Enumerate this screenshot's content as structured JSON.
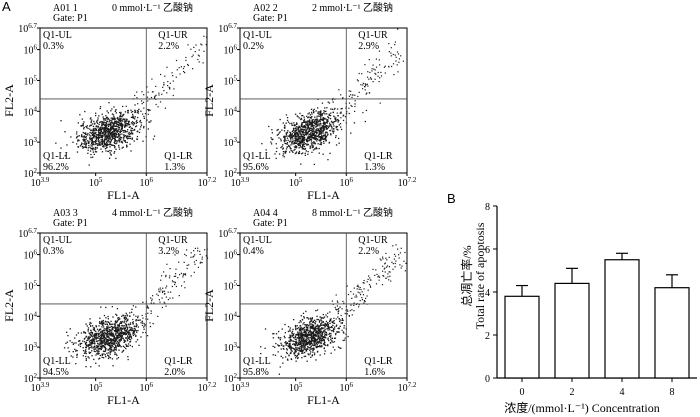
{
  "figure": {
    "panel_a_label": "A",
    "panel_b_label": "B"
  },
  "chart_data": [
    {
      "type": "scatter",
      "panel": "A",
      "sample_id": "A01 1",
      "gate": "Gate: P1",
      "condition": "0 mmol·L⁻¹ 乙酸钠",
      "xlabel": "FL1-A",
      "ylabel": "FL2-A",
      "x_ticks": [
        "10^3.9",
        "10^5",
        "10^6",
        "10^7.2"
      ],
      "y_ticks": [
        "10^6.7",
        "10^6",
        "10^5",
        "10^4",
        "10^3",
        "10^2"
      ],
      "quadrants": {
        "UL": {
          "name": "Q1-UL",
          "value": "0.3%"
        },
        "UR": {
          "name": "Q1-UR",
          "value": "2.2%"
        },
        "LL": {
          "name": "Q1-LL",
          "value": "96.2%"
        },
        "LR": {
          "name": "Q1-LR",
          "value": "1.3%"
        }
      },
      "gate_lines": {
        "x_log": 6.0,
        "y_log": 4.4
      }
    },
    {
      "type": "scatter",
      "panel": "A",
      "sample_id": "A02 2",
      "gate": "Gate: P1",
      "condition": "2 mmol·L⁻¹ 乙酸钠",
      "xlabel": "FL1-A",
      "ylabel": "FL2-A",
      "x_ticks": [
        "10^3.9",
        "10^5",
        "10^6",
        "10^7.2"
      ],
      "y_ticks": [
        "10^6.7",
        "10^6",
        "10^5",
        "10^4",
        "10^3",
        "10^2"
      ],
      "quadrants": {
        "UL": {
          "name": "Q1-UL",
          "value": "0.2%"
        },
        "UR": {
          "name": "Q1-UR",
          "value": "2.9%"
        },
        "LL": {
          "name": "Q1-LL",
          "value": "95.6%"
        },
        "LR": {
          "name": "Q1-LR",
          "value": "1.3%"
        }
      },
      "gate_lines": {
        "x_log": 6.0,
        "y_log": 4.4
      }
    },
    {
      "type": "scatter",
      "panel": "A",
      "sample_id": "A03 3",
      "gate": "Gate: P1",
      "condition": "4 mmol·L⁻¹ 乙酸钠",
      "xlabel": "FL1-A",
      "ylabel": "FL2-A",
      "x_ticks": [
        "10^3.9",
        "10^5",
        "10^6",
        "10^7.2"
      ],
      "y_ticks": [
        "10^6.7",
        "10^6",
        "10^5",
        "10^4",
        "10^3",
        "10^2"
      ],
      "quadrants": {
        "UL": {
          "name": "Q1-UL",
          "value": "0.3%"
        },
        "UR": {
          "name": "Q1-UR",
          "value": "3.2%"
        },
        "LL": {
          "name": "Q1-LL",
          "value": "94.5%"
        },
        "LR": {
          "name": "Q1-LR",
          "value": "2.0%"
        }
      },
      "gate_lines": {
        "x_log": 6.0,
        "y_log": 4.4
      }
    },
    {
      "type": "scatter",
      "panel": "A",
      "sample_id": "A04 4",
      "gate": "Gate: P1",
      "condition": "8 mmol·L⁻¹ 乙酸钠",
      "xlabel": "FL1-A",
      "ylabel": "FL2-A",
      "x_ticks": [
        "10^3.9",
        "10^5",
        "10^6",
        "10^7.2"
      ],
      "y_ticks": [
        "10^6.7",
        "10^6",
        "10^5",
        "10^4",
        "10^3",
        "10^2"
      ],
      "quadrants": {
        "UL": {
          "name": "Q1-UL",
          "value": "0.4%"
        },
        "UR": {
          "name": "Q1-UR",
          "value": "2.2%"
        },
        "LL": {
          "name": "Q1-LL",
          "value": "95.8%"
        },
        "LR": {
          "name": "Q1-LR",
          "value": "1.6%"
        }
      },
      "gate_lines": {
        "x_log": 6.0,
        "y_log": 4.4
      }
    },
    {
      "type": "bar",
      "panel": "B",
      "categories": [
        "0",
        "2",
        "4",
        "8"
      ],
      "values": [
        3.8,
        4.4,
        5.5,
        4.2
      ],
      "errors": [
        0.5,
        0.7,
        0.3,
        0.6
      ],
      "ylim": [
        0,
        8
      ],
      "y_ticks": [
        "0",
        "2",
        "4",
        "6",
        "8"
      ],
      "ylabel": "总凋亡率/%",
      "ylabel_en": "Total rate of apoptosis",
      "xlabel": "浓度/(mmol·L⁻¹)   Concentration"
    }
  ]
}
